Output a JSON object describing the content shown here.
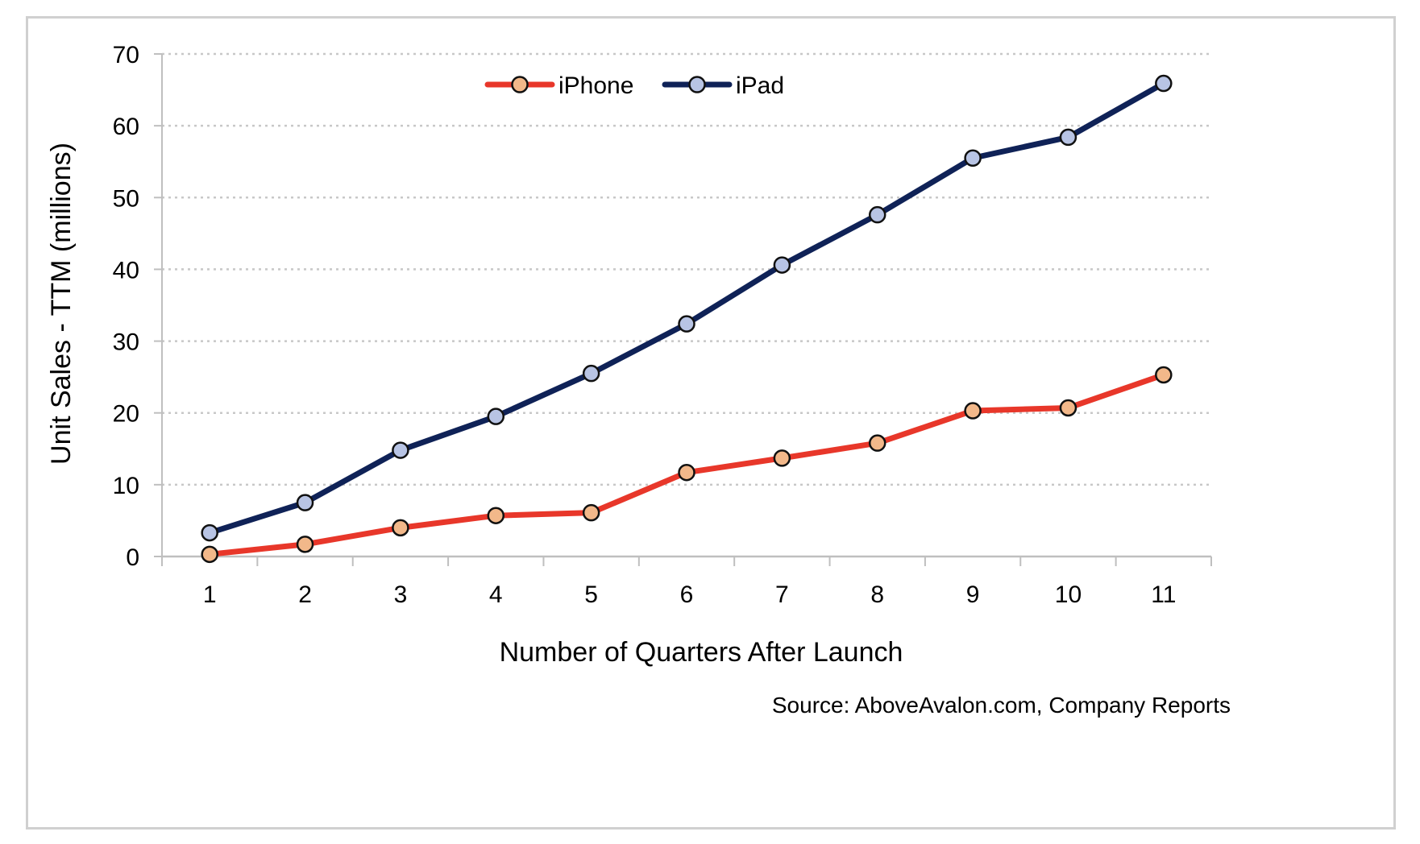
{
  "chart_data": {
    "type": "line",
    "x": [
      1,
      2,
      3,
      4,
      5,
      6,
      7,
      8,
      9,
      10,
      11
    ],
    "series": [
      {
        "name": "iPhone",
        "color": "#e8372a",
        "marker_fill": "#f2b88a",
        "values": [
          0.3,
          1.7,
          4.0,
          5.7,
          6.1,
          11.7,
          13.7,
          15.8,
          20.3,
          20.7,
          25.3
        ]
      },
      {
        "name": "iPad",
        "color": "#0f2257",
        "marker_fill": "#b8c4e4",
        "values": [
          3.3,
          7.5,
          14.8,
          19.5,
          25.5,
          32.4,
          40.6,
          47.6,
          55.5,
          58.4,
          65.9
        ]
      }
    ],
    "title": "",
    "xlabel": "Number of Quarters After Launch",
    "ylabel": "Unit Sales - TTM (millions)",
    "ylim": [
      0,
      70
    ],
    "yticks": [
      0,
      10,
      20,
      30,
      40,
      50,
      60,
      70
    ],
    "grid": true,
    "legend": "top-center",
    "source": "Source: AboveAvalon.com, Company Reports"
  }
}
